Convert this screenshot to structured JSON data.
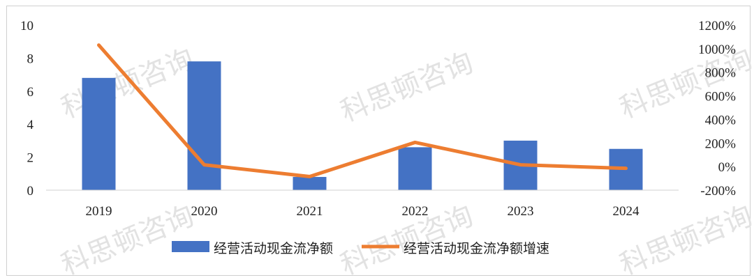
{
  "chart_data": {
    "type": "bar+line",
    "categories": [
      "2019",
      "2020",
      "2021",
      "2022",
      "2023",
      "2024"
    ],
    "series": [
      {
        "name": "经营活动现金流净额",
        "type": "bar",
        "axis": "left",
        "values": [
          6.8,
          7.8,
          0.8,
          2.6,
          3.0,
          2.5
        ]
      },
      {
        "name": "经营活动现金流净额增速",
        "type": "line",
        "axis": "right",
        "values": [
          1030,
          15,
          -85,
          205,
          15,
          -15
        ]
      }
    ],
    "y_left": {
      "ylim": [
        0,
        10
      ],
      "ticks": [
        "0",
        "2",
        "4",
        "6",
        "8",
        "10"
      ]
    },
    "y_right": {
      "ylim": [
        -200,
        1200
      ],
      "ticks": [
        "-200%",
        "0%",
        "200%",
        "400%",
        "600%",
        "800%",
        "1000%",
        "1200%"
      ]
    },
    "colors": {
      "bar": "#4472C4",
      "line": "#ED7D31"
    },
    "legend": {
      "position": "bottom"
    },
    "grid": false
  },
  "watermark": "科思顿咨询"
}
